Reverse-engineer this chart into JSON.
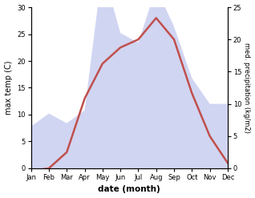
{
  "months": [
    "Jan",
    "Feb",
    "Mar",
    "Apr",
    "May",
    "Jun",
    "Jul",
    "Aug",
    "Sep",
    "Oct",
    "Nov",
    "Dec"
  ],
  "temperature": [
    -0.5,
    0.0,
    3.0,
    13.0,
    19.5,
    22.5,
    24.0,
    28.0,
    24.0,
    14.0,
    6.0,
    1.0
  ],
  "precipitation": [
    6.5,
    8.5,
    7.0,
    9.0,
    31.0,
    21.0,
    19.5,
    28.0,
    22.0,
    14.0,
    10.0,
    10.0
  ],
  "temp_color": "#c0504d",
  "precip_fill_color": "#aab4e8",
  "precip_fill_alpha": 0.55,
  "ylabel_left": "max temp (C)",
  "ylabel_right": "med. precipitation (kg/m2)",
  "xlabel": "date (month)",
  "ylim_left": [
    0,
    30
  ],
  "ylim_right": [
    0,
    25
  ],
  "yticks_left": [
    0,
    5,
    10,
    15,
    20,
    25,
    30
  ],
  "yticks_right": [
    0,
    5,
    10,
    15,
    20,
    25
  ],
  "figsize": [
    3.18,
    2.47
  ],
  "dpi": 100
}
